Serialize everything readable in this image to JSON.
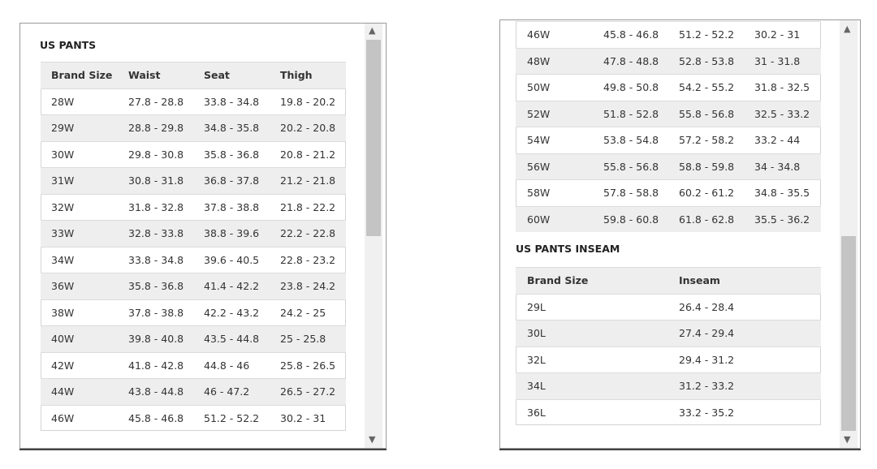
{
  "left_panel": {
    "title": "US PANTS",
    "table": {
      "header": [
        "Brand Size",
        "Waist",
        "Seat",
        "Thigh"
      ],
      "rows": [
        [
          "28W",
          "27.8 - 28.8",
          "33.8 - 34.8",
          "19.8 - 20.2"
        ],
        [
          "29W",
          "28.8 - 29.8",
          "34.8 - 35.8",
          "20.2 - 20.8"
        ],
        [
          "30W",
          "29.8 - 30.8",
          "35.8 - 36.8",
          "20.8 - 21.2"
        ],
        [
          "31W",
          "30.8 - 31.8",
          "36.8 - 37.8",
          "21.2 - 21.8"
        ],
        [
          "32W",
          "31.8 - 32.8",
          "37.8 - 38.8",
          "21.8 - 22.2"
        ],
        [
          "33W",
          "32.8 - 33.8",
          "38.8 - 39.6",
          "22.2 - 22.8"
        ],
        [
          "34W",
          "33.8 - 34.8",
          "39.6 - 40.5",
          "22.8 - 23.2"
        ],
        [
          "36W",
          "35.8 - 36.8",
          "41.4 - 42.2",
          "23.8 - 24.2"
        ],
        [
          "38W",
          "37.8 - 38.8",
          "42.2 - 43.2",
          "24.2 - 25"
        ],
        [
          "40W",
          "39.8 - 40.8",
          "43.5 - 44.8",
          "25 - 25.8"
        ],
        [
          "42W",
          "41.8 - 42.8",
          "44.8 - 46",
          "25.8 - 26.5"
        ],
        [
          "44W",
          "43.8 - 44.8",
          "46 - 47.2",
          "26.5 - 27.2"
        ],
        [
          "46W",
          "45.8 - 46.8",
          "51.2 - 52.2",
          "30.2 - 31"
        ]
      ]
    }
  },
  "right_panel": {
    "table": {
      "rows": [
        [
          "46W",
          "45.8 - 46.8",
          "51.2 - 52.2",
          "30.2 - 31"
        ],
        [
          "48W",
          "47.8 - 48.8",
          "52.8 - 53.8",
          "31 - 31.8"
        ],
        [
          "50W",
          "49.8 - 50.8",
          "54.2 - 55.2",
          "31.8 - 32.5"
        ],
        [
          "52W",
          "51.8 - 52.8",
          "55.8 - 56.8",
          "32.5 - 33.2"
        ],
        [
          "54W",
          "53.8 - 54.8",
          "57.2 - 58.2",
          "33.2 - 44"
        ],
        [
          "56W",
          "55.8 - 56.8",
          "58.8 - 59.8",
          "34 - 34.8"
        ],
        [
          "58W",
          "57.8 - 58.8",
          "60.2 - 61.2",
          "34.8 - 35.5"
        ],
        [
          "60W",
          "59.8 - 60.8",
          "61.8 - 62.8",
          "35.5 - 36.2"
        ]
      ]
    },
    "inseam_title": "US PANTS INSEAM",
    "inseam_table": {
      "header": [
        "Brand Size",
        "Inseam"
      ],
      "rows": [
        [
          "29L",
          "26.4 - 28.4"
        ],
        [
          "30L",
          "27.4 - 29.4"
        ],
        [
          "32L",
          "29.4 - 31.2"
        ],
        [
          "34L",
          "31.2 - 33.2"
        ],
        [
          "36L",
          "33.2 - 35.2"
        ]
      ]
    }
  }
}
